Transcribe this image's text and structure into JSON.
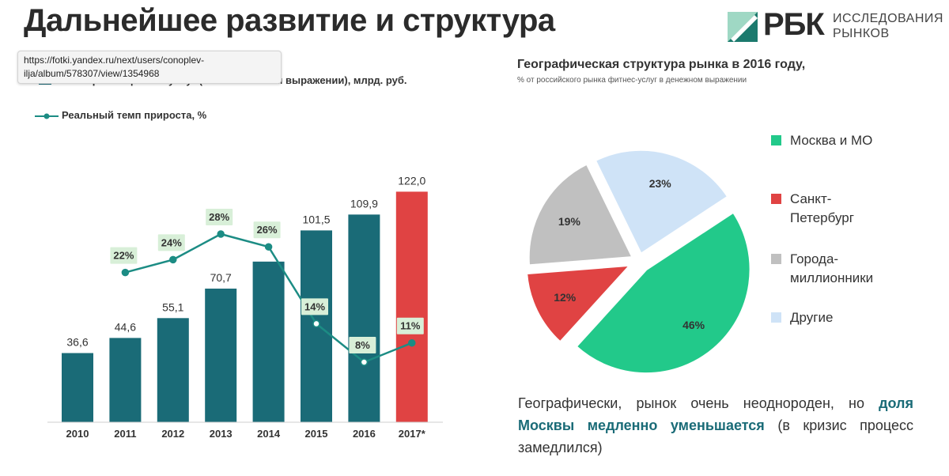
{
  "page": {
    "title": "Дальнейшее развитие и структура",
    "url_tooltip": "https://fotki.yandex.ru/next/users/conoplev-ilja/album/578307/view/1354968"
  },
  "logo": {
    "brand": "РБК",
    "sub_line1": "ИССЛЕДОВАНИЯ",
    "sub_line2": "РЫНКОВ"
  },
  "colors": {
    "bar": "#1a6b77",
    "bar_forecast": "#e04343",
    "line": "#1c8c84",
    "moscow": "#22c98a",
    "spb": "#e04343",
    "millionnik": "#c0c0c0",
    "others": "#cfe3f7"
  },
  "note": {
    "part1": "Географически, рынок очень неоднороден, но ",
    "accent": "доля Москвы медленно уменьшается",
    "part2": " (в кризис процесс замедлился)"
  },
  "chart_data": [
    {
      "type": "bar",
      "categories": [
        "2010",
        "2011",
        "2012",
        "2013",
        "2014",
        "2015",
        "2016",
        "2017*"
      ],
      "legend": [
        "Объем рынка фитнес-услуг (в номинальном выражении), млрд. руб.",
        "Реальный темп прироста, %"
      ],
      "series": [
        {
          "name": "Объем рынка фитнес-услуг (в номинальном выражении), млрд. руб.",
          "values": [
            36.6,
            44.6,
            55.1,
            70.7,
            85.0,
            101.5,
            109.9,
            122.0
          ],
          "labels": [
            "36,6",
            "44,6",
            "55,1",
            "70,7",
            "",
            "101,5",
            "109,9",
            "122,0"
          ]
        },
        {
          "name": "Реальный темп прироста, %",
          "type": "line",
          "values": [
            null,
            22,
            24,
            28,
            26,
            14,
            8,
            11
          ],
          "labels": [
            "",
            "22%",
            "24%",
            "28%",
            "26%",
            "14%",
            "8%",
            "11%"
          ]
        }
      ],
      "grid": false
    },
    {
      "type": "pie",
      "title": "Географическая структура рынка в 2016 году,",
      "subtitle": "% от российского рынка фитнес-услуг в денежном выражении",
      "slices": [
        {
          "name": "Москва и МО",
          "value": 46,
          "label": "46%"
        },
        {
          "name": "Санкт-Петербург",
          "value": 12,
          "label": "12%"
        },
        {
          "name": "Города-миллионники",
          "value": 19,
          "label": "19%"
        },
        {
          "name": "Другие",
          "value": 23,
          "label": "23%"
        }
      ],
      "legend": [
        {
          "line1": "Москва и МО",
          "line2": ""
        },
        {
          "line1": "Санкт-",
          "line2": "Петербург"
        },
        {
          "line1": "Города-",
          "line2": "миллионники"
        },
        {
          "line1": "Другие",
          "line2": ""
        }
      ],
      "legend_position": "right"
    }
  ]
}
